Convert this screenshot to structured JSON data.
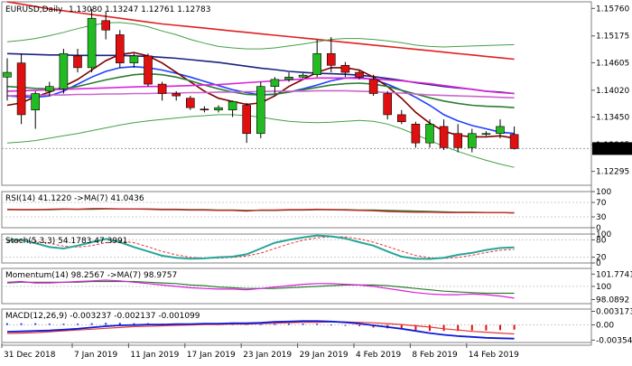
{
  "chart_data": {
    "type": "candlestick",
    "instrument": "EURUSD,Daily",
    "ohlc_header": "1.13080 1.13247 1.12761 1.12783",
    "current_price_label": "1.12783",
    "x_labels": [
      "31 Dec 2018",
      "7 Jan 2019",
      "11 Jan 2019",
      "17 Jan 2019",
      "23 Jan 2019",
      "29 Jan 2019",
      "4 Feb 2019",
      "8 Feb 2019",
      "14 Feb 2019"
    ],
    "main": {
      "ylim": [
        1.12,
        1.159
      ],
      "ticks": [
        "1.15760",
        "1.15175",
        "1.14605",
        "1.14020",
        "1.13450",
        "1.12865",
        "1.12295"
      ],
      "tick_values": [
        1.1576,
        1.15175,
        1.14605,
        1.1402,
        1.1345,
        1.12865,
        1.12295
      ],
      "candles": [
        {
          "o": 1.143,
          "h": 1.147,
          "l": 1.138,
          "c": 1.144
        },
        {
          "o": 1.146,
          "h": 1.148,
          "l": 1.133,
          "c": 1.135
        },
        {
          "o": 1.136,
          "h": 1.14,
          "l": 1.132,
          "c": 1.1395
        },
        {
          "o": 1.14,
          "h": 1.142,
          "l": 1.139,
          "c": 1.141
        },
        {
          "o": 1.1405,
          "h": 1.149,
          "l": 1.1395,
          "c": 1.148
        },
        {
          "o": 1.1475,
          "h": 1.149,
          "l": 1.144,
          "c": 1.145
        },
        {
          "o": 1.145,
          "h": 1.1575,
          "l": 1.144,
          "c": 1.1555
        },
        {
          "o": 1.155,
          "h": 1.157,
          "l": 1.151,
          "c": 1.153
        },
        {
          "o": 1.152,
          "h": 1.153,
          "l": 1.145,
          "c": 1.146
        },
        {
          "o": 1.146,
          "h": 1.148,
          "l": 1.145,
          "c": 1.1475
        },
        {
          "o": 1.1475,
          "h": 1.148,
          "l": 1.141,
          "c": 1.1415
        },
        {
          "o": 1.1415,
          "h": 1.142,
          "l": 1.138,
          "c": 1.1395
        },
        {
          "o": 1.1395,
          "h": 1.14,
          "l": 1.138,
          "c": 1.139
        },
        {
          "o": 1.1385,
          "h": 1.139,
          "l": 1.136,
          "c": 1.1365
        },
        {
          "o": 1.1362,
          "h": 1.1368,
          "l": 1.1355,
          "c": 1.136
        },
        {
          "o": 1.136,
          "h": 1.137,
          "l": 1.1355,
          "c": 1.1365
        },
        {
          "o": 1.136,
          "h": 1.138,
          "l": 1.1345,
          "c": 1.1378
        },
        {
          "o": 1.137,
          "h": 1.1375,
          "l": 1.129,
          "c": 1.131
        },
        {
          "o": 1.131,
          "h": 1.142,
          "l": 1.13,
          "c": 1.141
        },
        {
          "o": 1.141,
          "h": 1.143,
          "l": 1.1395,
          "c": 1.1425
        },
        {
          "o": 1.1425,
          "h": 1.144,
          "l": 1.142,
          "c": 1.143
        },
        {
          "o": 1.143,
          "h": 1.1438,
          "l": 1.1428,
          "c": 1.1434
        },
        {
          "o": 1.1435,
          "h": 1.151,
          "l": 1.143,
          "c": 1.148
        },
        {
          "o": 1.148,
          "h": 1.1515,
          "l": 1.144,
          "c": 1.1455
        },
        {
          "o": 1.1455,
          "h": 1.1462,
          "l": 1.143,
          "c": 1.144
        },
        {
          "o": 1.144,
          "h": 1.1445,
          "l": 1.1425,
          "c": 1.143
        },
        {
          "o": 1.1425,
          "h": 1.1435,
          "l": 1.139,
          "c": 1.1395
        },
        {
          "o": 1.1395,
          "h": 1.14,
          "l": 1.134,
          "c": 1.135
        },
        {
          "o": 1.135,
          "h": 1.136,
          "l": 1.133,
          "c": 1.1335
        },
        {
          "o": 1.133,
          "h": 1.1335,
          "l": 1.128,
          "c": 1.129
        },
        {
          "o": 1.129,
          "h": 1.134,
          "l": 1.128,
          "c": 1.133
        },
        {
          "o": 1.1325,
          "h": 1.134,
          "l": 1.1275,
          "c": 1.128
        },
        {
          "o": 1.131,
          "h": 1.133,
          "l": 1.127,
          "c": 1.128
        },
        {
          "o": 1.128,
          "h": 1.132,
          "l": 1.127,
          "c": 1.131
        },
        {
          "o": 1.131,
          "h": 1.1315,
          "l": 1.1305,
          "c": 1.131
        },
        {
          "o": 1.131,
          "h": 1.134,
          "l": 1.13,
          "c": 1.1325
        },
        {
          "o": 1.1308,
          "h": 1.1325,
          "l": 1.1276,
          "c": 1.1278
        }
      ],
      "lines": [
        {
          "name": "red-ma",
          "color": "#e02020",
          "values": [
            1.159,
            1.1585,
            1.158,
            1.1575,
            1.1571,
            1.1567,
            1.1563,
            1.1559,
            1.1555,
            1.1551,
            1.1547,
            1.1543,
            1.154,
            1.1537,
            1.1534,
            1.1531,
            1.1528,
            1.1525,
            1.1522,
            1.1519,
            1.1516,
            1.1513,
            1.151,
            1.1507,
            1.1504,
            1.1501,
            1.1498,
            1.1495,
            1.1492,
            1.1489,
            1.1486,
            1.1483,
            1.148,
            1.1477,
            1.1474,
            1.1471,
            1.1468
          ]
        },
        {
          "name": "navy-ma",
          "color": "#1a237e",
          "values": [
            1.148,
            1.1479,
            1.1478,
            1.1477,
            1.1477,
            1.1476,
            1.1476,
            1.1476,
            1.1476,
            1.1475,
            1.1474,
            1.1472,
            1.147,
            1.1467,
            1.1464,
            1.1461,
            1.1457,
            1.1453,
            1.1449,
            1.1446,
            1.1442,
            1.144,
            1.1438,
            1.1437,
            1.1436,
            1.1434,
            1.1431,
            1.1427,
            1.1423,
            1.1418,
            1.1414,
            1.141,
            1.1407,
            1.1404,
            1.14,
            1.1398,
            1.1395
          ]
        },
        {
          "name": "blue-ma",
          "color": "#1e40ff",
          "values": [
            1.139,
            1.1388,
            1.1387,
            1.139,
            1.14,
            1.1415,
            1.143,
            1.1442,
            1.145,
            1.1452,
            1.145,
            1.1445,
            1.1438,
            1.143,
            1.1421,
            1.1412,
            1.1403,
            1.1397,
            1.1392,
            1.1393,
            1.1398,
            1.1405,
            1.1413,
            1.1422,
            1.1428,
            1.1429,
            1.1425,
            1.1415,
            1.1402,
            1.1387,
            1.137,
            1.135,
            1.1337,
            1.1327,
            1.132,
            1.1313,
            1.131
          ]
        },
        {
          "name": "darkred-ma",
          "color": "#7f0000",
          "values": [
            1.137,
            1.1375,
            1.1388,
            1.1398,
            1.141,
            1.1425,
            1.1445,
            1.1465,
            1.1478,
            1.1482,
            1.1475,
            1.146,
            1.144,
            1.142,
            1.14,
            1.1385,
            1.1378,
            1.1372,
            1.1375,
            1.139,
            1.141,
            1.1425,
            1.144,
            1.145,
            1.145,
            1.1445,
            1.143,
            1.141,
            1.1385,
            1.1355,
            1.1332,
            1.1315,
            1.1306,
            1.1303,
            1.1303,
            1.1305,
            1.13
          ]
        },
        {
          "name": "green-ma",
          "color": "#2e7d32",
          "values": [
            1.141,
            1.1408,
            1.1406,
            1.1405,
            1.1405,
            1.141,
            1.1417,
            1.1424,
            1.143,
            1.1435,
            1.1437,
            1.1435,
            1.143,
            1.1422,
            1.1413,
            1.1405,
            1.1398,
            1.1393,
            1.1392,
            1.1394,
            1.1398,
            1.1403,
            1.1408,
            1.1413,
            1.1416,
            1.1417,
            1.1415,
            1.141,
            1.1402,
            1.1394,
            1.1386,
            1.1379,
            1.1374,
            1.137,
            1.1368,
            1.1367,
            1.1365
          ]
        },
        {
          "name": "magenta-ma",
          "color": "#dd22dd",
          "values": [
            1.14,
            1.1401,
            1.1402,
            1.1403,
            1.1404,
            1.1405,
            1.1406,
            1.1407,
            1.1408,
            1.1409,
            1.141,
            1.141,
            1.1411,
            1.1412,
            1.1413,
            1.1414,
            1.1416,
            1.1418,
            1.142,
            1.1422,
            1.1424,
            1.1426,
            1.1428,
            1.1428,
            1.1428,
            1.1427,
            1.1426,
            1.1424,
            1.1422,
            1.1419,
            1.1416,
            1.1412,
            1.1408,
            1.1404,
            1.14,
            1.1397,
            1.1395
          ]
        },
        {
          "name": "violet-ma",
          "color": "#cc66cc",
          "values": [
            1.139,
            1.1391,
            1.1391,
            1.1392,
            1.1392,
            1.1393,
            1.1393,
            1.1394,
            1.1394,
            1.1395,
            1.1395,
            1.1396,
            1.1396,
            1.1397,
            1.1397,
            1.1398,
            1.1398,
            1.1399,
            1.1399,
            1.14,
            1.14,
            1.14,
            1.1401,
            1.1401,
            1.1401,
            1.14,
            1.1399,
            1.1397,
            1.1396,
            1.1394,
            1.1392,
            1.1391,
            1.139,
            1.1389,
            1.1388,
            1.1387,
            1.1386
          ]
        },
        {
          "name": "bb-upper",
          "color": "#43a047",
          "values": [
            1.1505,
            1.1508,
            1.1512,
            1.1518,
            1.1525,
            1.1533,
            1.154,
            1.1545,
            1.1546,
            1.1543,
            1.1537,
            1.1528,
            1.152,
            1.151,
            1.1502,
            1.1495,
            1.1492,
            1.149,
            1.149,
            1.1492,
            1.1496,
            1.15,
            1.1505,
            1.151,
            1.1512,
            1.1512,
            1.151,
            1.1507,
            1.1503,
            1.1498,
            1.1495,
            1.1494,
            1.1495,
            1.1496,
            1.1497,
            1.1498,
            1.1499
          ]
        },
        {
          "name": "bb-lower",
          "color": "#43a047",
          "values": [
            1.129,
            1.1292,
            1.1295,
            1.13,
            1.1305,
            1.131,
            1.1316,
            1.1322,
            1.1328,
            1.1333,
            1.1337,
            1.134,
            1.1343,
            1.1346,
            1.1348,
            1.135,
            1.135,
            1.1348,
            1.1345,
            1.134,
            1.1336,
            1.1334,
            1.1333,
            1.1334,
            1.1336,
            1.1338,
            1.1336,
            1.133,
            1.132,
            1.1308,
            1.1295,
            1.1283,
            1.1272,
            1.1262,
            1.1253,
            1.1245,
            1.1238
          ]
        }
      ]
    },
    "rsi": {
      "label": "RSI(14) 41.1220  ->MA(7) 41.0436",
      "ylim": [
        0,
        100
      ],
      "ticks": [
        "100",
        "70",
        "30",
        "0"
      ],
      "tick_values": [
        100,
        70,
        30,
        0
      ],
      "rsi_values": [
        51,
        50,
        50,
        51,
        52,
        51,
        53,
        53,
        52,
        52,
        51,
        50,
        50,
        49,
        49,
        48,
        48,
        46,
        49,
        49,
        50,
        50,
        51,
        50,
        49,
        48,
        47,
        45,
        44,
        43,
        43,
        42,
        42,
        42,
        42,
        42,
        41
      ],
      "ma_values": [
        50,
        50,
        50,
        50,
        51,
        51,
        51,
        52,
        52,
        52,
        52,
        51,
        51,
        50,
        50,
        49,
        49,
        48,
        48,
        48,
        49,
        49,
        50,
        50,
        50,
        49,
        49,
        48,
        47,
        46,
        45,
        44,
        43,
        43,
        42,
        42,
        41
      ]
    },
    "stoch": {
      "label": "Stoch(5,3,3) 54.1783 47.3991",
      "ylim": [
        0,
        100
      ],
      "ticks": [
        "100",
        "80",
        "20",
        "0"
      ],
      "tick_values": [
        100,
        80,
        20,
        0
      ],
      "k_values": [
        78,
        80,
        68,
        55,
        50,
        60,
        72,
        83,
        72,
        55,
        40,
        25,
        18,
        15,
        16,
        20,
        22,
        30,
        50,
        70,
        80,
        88,
        95,
        92,
        85,
        72,
        60,
        40,
        22,
        15,
        14,
        18,
        28,
        35,
        45,
        52,
        54
      ],
      "d_values": [
        72,
        76,
        75,
        68,
        58,
        55,
        60,
        70,
        76,
        70,
        56,
        40,
        28,
        20,
        17,
        17,
        19,
        24,
        34,
        50,
        66,
        79,
        87,
        91,
        90,
        83,
        72,
        57,
        41,
        26,
        18,
        16,
        19,
        27,
        36,
        44,
        47
      ]
    },
    "momentum": {
      "label": "Momentum(14) 98.2567  ->MA(7) 98.9757",
      "ylim": [
        97.5,
        102.6
      ],
      "ticks": [
        "101.7741",
        "100",
        "98.0892"
      ],
      "tick_values": [
        101.7741,
        100,
        98.0892
      ],
      "mom_values": [
        100.6,
        100.7,
        100.5,
        100.5,
        100.6,
        100.7,
        100.8,
        100.9,
        100.8,
        100.6,
        100.4,
        100.2,
        100.0,
        99.8,
        99.7,
        99.6,
        99.6,
        99.5,
        99.7,
        99.9,
        100.1,
        100.3,
        100.4,
        100.4,
        100.3,
        100.2,
        100.0,
        99.7,
        99.4,
        99.1,
        98.9,
        98.8,
        98.8,
        98.9,
        98.8,
        98.6,
        98.3
      ],
      "ma_values": [
        100.5,
        100.6,
        100.6,
        100.6,
        100.6,
        100.6,
        100.7,
        100.7,
        100.7,
        100.7,
        100.6,
        100.5,
        100.4,
        100.2,
        100.1,
        99.9,
        99.8,
        99.7,
        99.7,
        99.7,
        99.8,
        99.9,
        100.0,
        100.1,
        100.2,
        100.2,
        100.2,
        100.1,
        99.9,
        99.7,
        99.5,
        99.3,
        99.2,
        99.1,
        99.0,
        99.0,
        99.0
      ]
    },
    "macd": {
      "label": "MACD(12,26,9) -0.003237 -0.002137 -0.001099",
      "ylim": [
        -0.0041,
        0.0037
      ],
      "ticks": [
        "0.003173",
        "0.00",
        "-0.003542"
      ],
      "tick_values": [
        0.003173,
        0,
        -0.003542
      ],
      "macd_values": [
        -0.0016,
        -0.0015,
        -0.0014,
        -0.0013,
        -0.0011,
        -0.0009,
        -0.0006,
        -0.0003,
        -0.0001,
        0.0,
        0.0001,
        0.0001,
        0.0002,
        0.0002,
        0.0003,
        0.0003,
        0.0004,
        0.0004,
        0.0005,
        0.0007,
        0.0008,
        0.0009,
        0.0009,
        0.0008,
        0.0006,
        0.0003,
        -0.0001,
        -0.0005,
        -0.0009,
        -0.0014,
        -0.0019,
        -0.0023,
        -0.0026,
        -0.0028,
        -0.003,
        -0.0031,
        -0.0032
      ],
      "signal_values": [
        -0.002,
        -0.0019,
        -0.0018,
        -0.0016,
        -0.0014,
        -0.0012,
        -0.001,
        -0.0008,
        -0.0006,
        -0.0004,
        -0.0003,
        -0.0002,
        -0.0001,
        0.0,
        0.0001,
        0.0001,
        0.0002,
        0.0002,
        0.0003,
        0.0004,
        0.0005,
        0.0006,
        0.0006,
        0.0007,
        0.0007,
        0.0006,
        0.0005,
        0.0003,
        0.0001,
        -0.0002,
        -0.0005,
        -0.0009,
        -0.0012,
        -0.0015,
        -0.0017,
        -0.0019,
        -0.0021
      ],
      "hist_values": [
        0.0004,
        0.0004,
        0.0004,
        0.0003,
        0.0003,
        0.0003,
        0.0004,
        0.0005,
        0.0005,
        0.0004,
        0.0004,
        0.0003,
        0.0003,
        0.0002,
        0.0002,
        0.0002,
        0.0002,
        0.0002,
        0.0002,
        0.0003,
        0.0003,
        0.0003,
        0.0003,
        0.0001,
        -0.0001,
        -0.0003,
        -0.0006,
        -0.0008,
        -0.001,
        -0.0012,
        -0.0014,
        -0.0014,
        -0.0014,
        -0.0013,
        -0.0013,
        -0.0012,
        -0.0011
      ]
    }
  }
}
